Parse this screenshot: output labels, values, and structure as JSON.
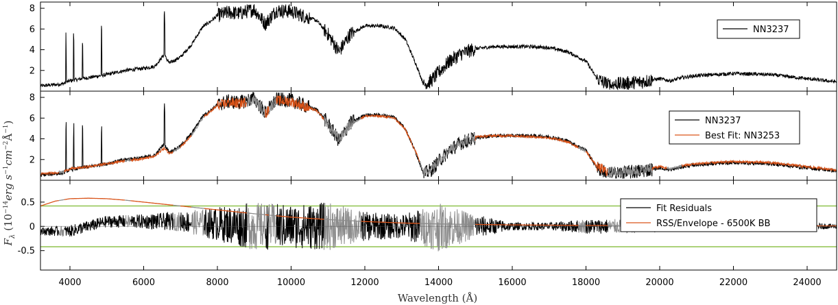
{
  "chart_data": [
    {
      "type": "line",
      "xlim": [
        3200,
        24800
      ],
      "ylim": [
        0,
        8.6
      ],
      "yticks": [
        2,
        4,
        6,
        8
      ],
      "legend_position": "top-right",
      "grid": false,
      "series": [
        {
          "name": "NN3237",
          "color": "#000000",
          "x": [
            3200,
            3800,
            4000,
            4500,
            5000,
            5500,
            6000,
            6300,
            6550,
            6700,
            7000,
            7300,
            7600,
            7800,
            8000,
            8300,
            8600,
            9000,
            9300,
            9600,
            10000,
            10300,
            10700,
            11000,
            11300,
            11600,
            12000,
            12400,
            12800,
            13100,
            13400,
            13600,
            13800,
            14000,
            14300,
            14600,
            15000,
            15500,
            16000,
            16500,
            17000,
            17500,
            18000,
            18300,
            18600,
            19000,
            19500,
            20000,
            20300,
            20600,
            21000,
            22000,
            23000,
            24000,
            24800
          ],
          "y": [
            0.5,
            0.7,
            1.0,
            1.3,
            1.6,
            2.0,
            2.2,
            2.4,
            3.5,
            2.7,
            3.3,
            4.5,
            6.2,
            6.7,
            7.3,
            7.6,
            7.5,
            7.9,
            6.5,
            7.8,
            7.7,
            7.3,
            6.8,
            5.5,
            3.8,
            5.5,
            6.3,
            6.3,
            6.1,
            5.0,
            2.5,
            0.6,
            1.0,
            1.8,
            2.9,
            3.6,
            4.1,
            4.3,
            4.3,
            4.3,
            4.2,
            3.8,
            2.9,
            1.2,
            0.6,
            0.7,
            0.9,
            1.2,
            1.0,
            1.3,
            1.5,
            1.7,
            1.6,
            1.2,
            0.9
          ]
        }
      ]
    },
    {
      "type": "line",
      "xlim": [
        3200,
        24800
      ],
      "ylim": [
        0,
        8.6
      ],
      "yticks": [
        2,
        4,
        6,
        8
      ],
      "legend_position": "top-right",
      "grid": false,
      "series": [
        {
          "name": "NN3237",
          "color": "#000000",
          "x": [
            3200,
            3800,
            4000,
            4500,
            5000,
            5500,
            6000,
            6300,
            6550,
            6700,
            7000,
            7300,
            7600,
            7800,
            8000,
            8300,
            8600,
            9000,
            9300,
            9600,
            10000,
            10300,
            10700,
            11000,
            11300,
            11600,
            12000,
            12400,
            12800,
            13100,
            13400,
            13600,
            13800,
            14000,
            14300,
            14600,
            15000,
            15500,
            16000,
            16500,
            17000,
            17500,
            18000,
            18300,
            18600,
            19000,
            19500,
            20000,
            20300,
            20600,
            21000,
            22000,
            23000,
            24000,
            24800
          ],
          "y": [
            0.5,
            0.7,
            1.0,
            1.3,
            1.6,
            2.0,
            2.2,
            2.4,
            3.5,
            2.7,
            3.3,
            4.5,
            6.2,
            6.7,
            7.3,
            7.6,
            7.5,
            7.9,
            6.5,
            7.8,
            7.7,
            7.3,
            6.8,
            5.5,
            3.8,
            5.5,
            6.3,
            6.3,
            6.1,
            5.0,
            2.5,
            0.6,
            1.0,
            1.8,
            2.9,
            3.6,
            4.1,
            4.3,
            4.3,
            4.3,
            4.2,
            3.8,
            2.9,
            1.2,
            0.6,
            0.7,
            0.9,
            1.2,
            1.0,
            1.3,
            1.5,
            1.7,
            1.6,
            1.2,
            0.9
          ]
        },
        {
          "name": "Best Fit: NN3253",
          "color": "#d95319",
          "x": [
            3200,
            3800,
            4000,
            4500,
            5000,
            5500,
            6000,
            6300,
            6550,
            6700,
            7000,
            7300,
            7600,
            7800,
            8000,
            8300,
            8600,
            9000,
            9300,
            9600,
            10000,
            10300,
            10700,
            11000,
            11300,
            11600,
            12000,
            12400,
            12800,
            13100,
            13400,
            13600,
            13800,
            14000,
            14300,
            14600,
            15000,
            15500,
            16000,
            16500,
            17000,
            17500,
            18000,
            18300,
            18600,
            19000,
            19500,
            20000,
            20300,
            20600,
            21000,
            22000,
            23000,
            24000,
            24800
          ],
          "y": [
            0.6,
            0.8,
            1.1,
            1.3,
            1.6,
            1.9,
            2.1,
            2.3,
            3.1,
            2.6,
            3.2,
            4.3,
            6.0,
            6.6,
            7.2,
            7.5,
            7.4,
            7.8,
            6.4,
            7.7,
            7.6,
            7.2,
            6.7,
            5.4,
            3.9,
            5.4,
            6.2,
            6.2,
            6.0,
            4.9,
            2.6,
            0.8,
            1.1,
            1.9,
            3.0,
            3.7,
            4.2,
            4.3,
            4.3,
            4.2,
            4.1,
            3.7,
            2.8,
            1.3,
            0.8,
            0.8,
            1.0,
            1.3,
            1.1,
            1.4,
            1.6,
            1.8,
            1.7,
            1.3,
            1.0
          ]
        }
      ],
      "masked_regions_color": "#8c8c8c",
      "masked_regions": [
        [
          3700,
          3850
        ],
        [
          5500,
          5650
        ],
        [
          6800,
          7000
        ],
        [
          7300,
          7650
        ],
        [
          8800,
          9300
        ],
        [
          9400,
          9600
        ],
        [
          10900,
          11900
        ],
        [
          13500,
          15000
        ],
        [
          17800,
          18000
        ],
        [
          18600,
          19800
        ],
        [
          20200,
          20600
        ]
      ]
    },
    {
      "type": "line",
      "xlim": [
        3200,
        24800
      ],
      "ylim": [
        -0.9,
        0.95
      ],
      "yticks": [
        -0.5,
        0,
        0.5
      ],
      "xticks": [
        4000,
        6000,
        8000,
        10000,
        12000,
        14000,
        16000,
        18000,
        20000,
        22000,
        24000
      ],
      "xlabel": "Wavelength (Å)",
      "legend_position": "top-right",
      "grid": false,
      "threshold_lines": {
        "values": [
          0.42,
          -0.42
        ],
        "color": "#8fc34d"
      },
      "zero_line": {
        "value": 0,
        "color": "#555555"
      },
      "series": [
        {
          "name": "Fit Residuals",
          "color": "#000000",
          "x": [
            3200,
            4000,
            5000,
            6000,
            7000,
            8000,
            9000,
            10000,
            11000,
            12000,
            13000,
            14000,
            15000,
            16000,
            17000,
            18000,
            19000,
            20000,
            21000,
            22000,
            23000,
            24000,
            24800
          ],
          "amplitude": [
            0.08,
            0.12,
            0.12,
            0.15,
            0.2,
            0.35,
            0.5,
            0.45,
            0.5,
            0.3,
            0.25,
            0.5,
            0.25,
            0.08,
            0.08,
            0.15,
            0.15,
            0.12,
            0.08,
            0.06,
            0.06,
            0.07,
            0.05
          ],
          "offset": [
            -0.1,
            -0.1,
            0.1,
            0.1,
            0.1,
            0.05,
            0.0,
            0.0,
            0.0,
            0.0,
            0.0,
            -0.02,
            0.0,
            0.0,
            0.0,
            0.0,
            0.0,
            0.0,
            0.0,
            0.0,
            0.0,
            0.0,
            0.0
          ]
        },
        {
          "name": "RSS/Envelope - 6500K BB",
          "color": "#d95319",
          "x": [
            3200,
            3600,
            4000,
            4500,
            5000,
            5500,
            6000,
            7000,
            8000,
            9000,
            10000,
            11000,
            12000,
            13000,
            14000,
            15000,
            16000,
            18000,
            20000,
            22000,
            24000,
            24800
          ],
          "y": [
            0.42,
            0.52,
            0.57,
            0.58,
            0.57,
            0.54,
            0.5,
            0.42,
            0.34,
            0.26,
            0.19,
            0.14,
            0.1,
            0.07,
            0.05,
            0.04,
            0.03,
            0.02,
            0.02,
            0.01,
            0.01,
            0.01
          ]
        }
      ],
      "masked_regions_color": "#8c8c8c",
      "masked_regions": [
        [
          3700,
          3850
        ],
        [
          5500,
          5650
        ],
        [
          6800,
          7000
        ],
        [
          7300,
          7650
        ],
        [
          8800,
          9300
        ],
        [
          9400,
          9600
        ],
        [
          10900,
          11900
        ],
        [
          13500,
          15000
        ],
        [
          17800,
          18000
        ],
        [
          18600,
          19800
        ],
        [
          20200,
          20600
        ]
      ]
    }
  ],
  "ylabel_parts": {
    "f": "F",
    "lambda": "λ",
    "open": " (10",
    "exp14": "−14",
    "erg": "erg s",
    "exp1": "−1",
    "cm": "cm",
    "exp2": "−2",
    "ang": "Å",
    "close": ")"
  }
}
